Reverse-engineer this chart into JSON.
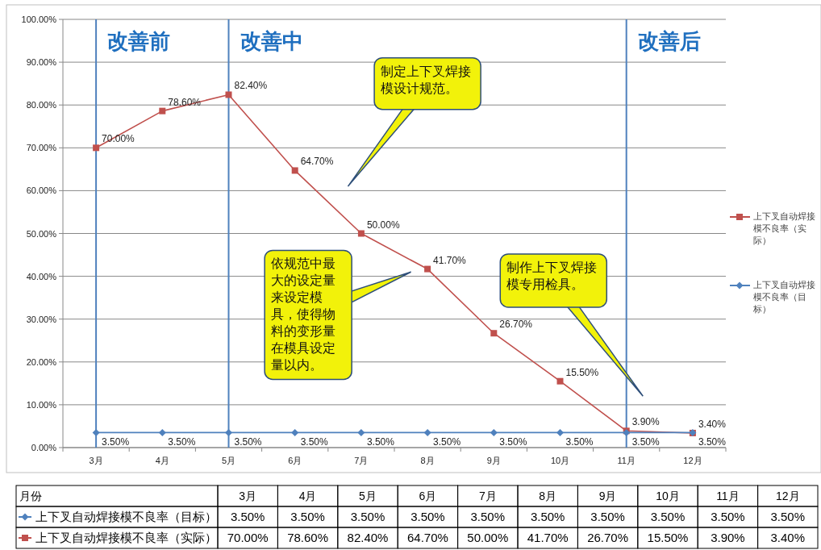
{
  "chart_data": {
    "type": "line",
    "xlabel": "月份",
    "categories": [
      "3月",
      "4月",
      "5月",
      "6月",
      "7月",
      "8月",
      "9月",
      "10月",
      "11月",
      "12月"
    ],
    "series": [
      {
        "name": "上下叉自动焊接模不良率（实际）",
        "color": "#c0504d",
        "marker": "square",
        "values": [
          70.0,
          78.6,
          82.4,
          64.7,
          50.0,
          41.7,
          26.7,
          15.5,
          3.9,
          3.4
        ],
        "value_labels": [
          "70.00%",
          "78.60%",
          "82.40%",
          "64.70%",
          "50.00%",
          "41.70%",
          "26.70%",
          "15.50%",
          "3.90%",
          "3.40%"
        ]
      },
      {
        "name": "上下叉自动焊接模不良率（目标）",
        "color": "#4f81bd",
        "marker": "diamond",
        "values": [
          3.5,
          3.5,
          3.5,
          3.5,
          3.5,
          3.5,
          3.5,
          3.5,
          3.5,
          3.5
        ],
        "value_labels": [
          "3.50%",
          "3.50%",
          "3.50%",
          "3.50%",
          "3.50%",
          "3.50%",
          "3.50%",
          "3.50%",
          "3.50%",
          "3.50%"
        ]
      }
    ],
    "ylim": [
      0,
      100
    ],
    "yticks": [
      {
        "value": 0,
        "label": "0.00%"
      },
      {
        "value": 10,
        "label": "10.00%"
      },
      {
        "value": 20,
        "label": "20.00%"
      },
      {
        "value": 30,
        "label": "30.00%"
      },
      {
        "value": 40,
        "label": "40.00%"
      },
      {
        "value": 50,
        "label": "50.00%"
      },
      {
        "value": 60,
        "label": "60.00%"
      },
      {
        "value": 70,
        "label": "70.00%"
      },
      {
        "value": 80,
        "label": "80.00%"
      },
      {
        "value": 90,
        "label": "90.00%"
      },
      {
        "value": 100,
        "label": "100.00%"
      }
    ],
    "ref_lines": [
      {
        "axis": "x",
        "value": "3月",
        "label": "改善前",
        "color": "#4f81bd"
      },
      {
        "axis": "x",
        "value": "5月",
        "label": "改善中",
        "color": "#4f81bd"
      },
      {
        "axis": "x",
        "value": "11月",
        "label": "改善后",
        "color": "#4f81bd"
      }
    ],
    "annotations": [
      "制定上下叉焊接模设计规范。",
      "依规范中最大的设定量来设定模具，使得物料的变形量在模具设定量以内。",
      "制作上下叉焊接模专用检具。"
    ],
    "grid": "y",
    "legend": "right"
  }
}
